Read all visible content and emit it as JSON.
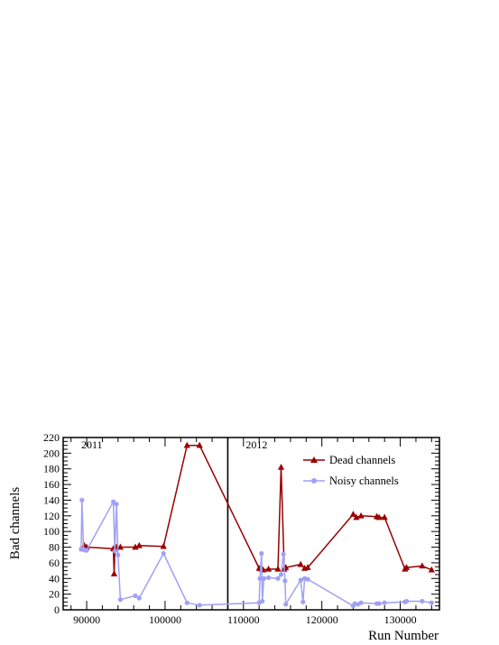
{
  "chart_data": {
    "type": "line",
    "xlabel": "Run Number",
    "ylabel": "Bad channels",
    "xlim": [
      87000,
      135000
    ],
    "ylim": [
      0,
      220
    ],
    "x_ticks": [
      90000,
      100000,
      110000,
      120000,
      130000
    ],
    "y_ticks": [
      0,
      20,
      40,
      60,
      80,
      100,
      120,
      140,
      160,
      180,
      200,
      220
    ],
    "grid": false,
    "legend": "top-right",
    "annotations": [
      {
        "text": "2011",
        "x": 89300,
        "y": 206
      },
      {
        "text": "2012",
        "x": 110300,
        "y": 206
      }
    ],
    "separator_x": 108000,
    "series": [
      {
        "name": "Dead channels",
        "color": "#990000",
        "marker": "triangle",
        "points": [
          [
            89500,
            78
          ],
          [
            89700,
            82
          ],
          [
            90000,
            80
          ],
          [
            93400,
            78
          ],
          [
            93500,
            46
          ],
          [
            93600,
            78
          ],
          [
            93800,
            80
          ],
          [
            94300,
            80
          ],
          [
            96200,
            80
          ],
          [
            96700,
            82
          ],
          [
            99800,
            81
          ],
          [
            102800,
            210
          ],
          [
            104400,
            210
          ],
          [
            112000,
            53
          ],
          [
            112300,
            52
          ],
          [
            112500,
            51
          ],
          [
            113200,
            52
          ],
          [
            114400,
            52
          ],
          [
            114800,
            182
          ],
          [
            115200,
            52
          ],
          [
            115400,
            54
          ],
          [
            117300,
            58
          ],
          [
            117800,
            53
          ],
          [
            118200,
            54
          ],
          [
            124000,
            122
          ],
          [
            124400,
            118
          ],
          [
            125000,
            120
          ],
          [
            127000,
            119
          ],
          [
            127300,
            118
          ],
          [
            128000,
            118
          ],
          [
            130600,
            52
          ],
          [
            130800,
            54
          ],
          [
            132800,
            56
          ],
          [
            134000,
            51
          ]
        ]
      },
      {
        "name": "Noisy channels",
        "color": "#a0a0f5",
        "marker": "circle",
        "points": [
          [
            89300,
            78
          ],
          [
            89400,
            140
          ],
          [
            89600,
            77
          ],
          [
            89800,
            76
          ],
          [
            90000,
            76
          ],
          [
            93400,
            138
          ],
          [
            93600,
            75
          ],
          [
            93800,
            135
          ],
          [
            94000,
            70
          ],
          [
            94300,
            13
          ],
          [
            96200,
            18
          ],
          [
            96700,
            15
          ],
          [
            99800,
            72
          ],
          [
            102800,
            9
          ],
          [
            104400,
            6
          ],
          [
            112000,
            9
          ],
          [
            112100,
            40
          ],
          [
            112300,
            72
          ],
          [
            112400,
            11
          ],
          [
            112600,
            40
          ],
          [
            113200,
            41
          ],
          [
            114400,
            40
          ],
          [
            114800,
            45
          ],
          [
            115100,
            71
          ],
          [
            115300,
            37
          ],
          [
            115400,
            7
          ],
          [
            117300,
            38
          ],
          [
            117600,
            10
          ],
          [
            117800,
            40
          ],
          [
            118200,
            39
          ],
          [
            124000,
            5
          ],
          [
            124200,
            8
          ],
          [
            124600,
            7
          ],
          [
            125000,
            9
          ],
          [
            127000,
            8
          ],
          [
            127300,
            8
          ],
          [
            128000,
            9
          ],
          [
            130600,
            10
          ],
          [
            130800,
            11
          ],
          [
            132800,
            11
          ],
          [
            134000,
            9
          ]
        ]
      }
    ]
  }
}
